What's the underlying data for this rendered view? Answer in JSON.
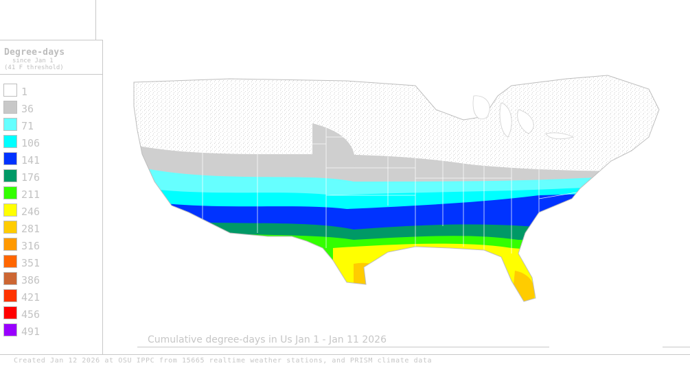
{
  "legend": {
    "title": "Degree-days",
    "subtitle_1": "since Jan 1",
    "subtitle_2": "(41 F threshold)",
    "items": [
      {
        "label": "1",
        "color": "#ffffff"
      },
      {
        "label": "36",
        "color": "#c8c8c8"
      },
      {
        "label": "71",
        "color": "#66ffff"
      },
      {
        "label": "106",
        "color": "#00ffff"
      },
      {
        "label": "141",
        "color": "#0033ff"
      },
      {
        "label": "176",
        "color": "#009966"
      },
      {
        "label": "211",
        "color": "#33ff00"
      },
      {
        "label": "246",
        "color": "#ffff00"
      },
      {
        "label": "281",
        "color": "#ffcc00"
      },
      {
        "label": "316",
        "color": "#ff9900"
      },
      {
        "label": "351",
        "color": "#ff6600"
      },
      {
        "label": "386",
        "color": "#cc6633"
      },
      {
        "label": "421",
        "color": "#ff3300"
      },
      {
        "label": "456",
        "color": "#ff0000"
      },
      {
        "label": "491",
        "color": "#9900ff"
      }
    ]
  },
  "map": {
    "title": "Cumulative degree-days in Us  Jan 1 - Jan 11 2026",
    "region": "Continental United States"
  },
  "footer": "Created Jan 12 2026 at OSU IPPC from 15665 realtime weather stations, and PRISM climate data"
}
